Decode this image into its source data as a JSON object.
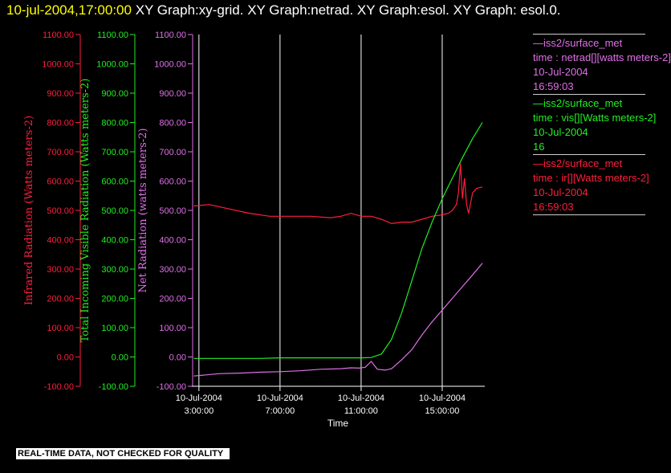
{
  "header": {
    "timestamp": "10-jul-2004,17:00:00",
    "graphs": "  XY Graph:xy-grid.  XY Graph:netrad.  XY Graph:esol.  XY Graph: esol.0."
  },
  "colors": {
    "infrared": "#ff1e3c",
    "visible": "#22ee22",
    "net": "#e070e8",
    "axis": "#ffffff",
    "grid": "#ffffff"
  },
  "legend": {
    "entries": [
      {
        "color": "#e070e8",
        "lines": [
          "—iss2/surface_met",
          "time : netrad[][watts meters-2]",
          "10-Jul-2004",
          "16:59:03"
        ]
      },
      {
        "color": "#22ee22",
        "lines": [
          "—iss2/surface_met",
          "time : vis[][Watts meters-2]",
          "10-Jul-2004",
          "16"
        ]
      },
      {
        "color": "#ff1e3c",
        "lines": [
          "—iss2/surface_met",
          "time : ir[][Watts meters-2]",
          "10-Jul-2004",
          "16:59:03"
        ]
      }
    ]
  },
  "footer": {
    "warning": "REAL-TIME DATA, NOT CHECKED FOR QUALITY"
  },
  "chart_data": {
    "type": "line",
    "xlabel": "Time",
    "x_ticks": [
      {
        "x": 3,
        "date": "10-Jul-2004",
        "time": "3:00:00"
      },
      {
        "x": 7,
        "date": "10-Jul-2004",
        "time": "7:00:00"
      },
      {
        "x": 11,
        "date": "10-Jul-2004",
        "time": "11:00:00"
      },
      {
        "x": 15,
        "date": "10-Jul-2004",
        "time": "15:00:00"
      }
    ],
    "xlim": [
      2.65,
      17.1
    ],
    "grid": true,
    "y_axes": [
      {
        "label": "Infrared Radiation (Watts meters-2)",
        "color": "#ff1e3c",
        "ylim": [
          -100,
          1100
        ],
        "ticks": [
          "-100.00",
          "0.00",
          "100.00",
          "200.00",
          "300.00",
          "400.00",
          "500.00",
          "600.00",
          "700.00",
          "800.00",
          "900.00",
          "1000.00",
          "1100.00"
        ]
      },
      {
        "label": "Total Incoming Visible Radiation (Watts meters-2)",
        "color": "#22ee22",
        "ylim": [
          -100,
          1100
        ],
        "ticks": [
          "-100.00",
          "0.00",
          "100.00",
          "200.00",
          "300.00",
          "400.00",
          "500.00",
          "600.00",
          "700.00",
          "800.00",
          "900.00",
          "1000.00",
          "1100.00"
        ]
      },
      {
        "label": "Net Radiation (watts meters-2)",
        "color": "#e070e8",
        "ylim": [
          -100,
          1100
        ],
        "ticks": [
          "-100.00",
          "0.00",
          "100.00",
          "200.00",
          "300.00",
          "400.00",
          "500.00",
          "600.00",
          "700.00",
          "800.00",
          "900.00",
          "1000.00",
          "1100.00"
        ]
      }
    ],
    "series": [
      {
        "name": "time : ir[][Watts meters-2]",
        "color": "#ff1e3c",
        "x": [
          2.75,
          3.5,
          4.5,
          5.5,
          6.5,
          7.5,
          8.5,
          9.5,
          10.0,
          10.5,
          11.0,
          11.5,
          12.0,
          12.5,
          13.0,
          13.5,
          14.0,
          14.5,
          15.0,
          15.3,
          15.5,
          15.7,
          15.8,
          15.9,
          16.0,
          16.1,
          16.2,
          16.3,
          16.5,
          16.7,
          16.98
        ],
        "y": [
          515,
          520,
          505,
          490,
          480,
          480,
          480,
          475,
          480,
          490,
          480,
          480,
          470,
          455,
          460,
          460,
          470,
          480,
          485,
          490,
          500,
          520,
          560,
          660,
          540,
          610,
          520,
          490,
          560,
          575,
          580
        ]
      },
      {
        "name": "time : vis[][Watts meters-2]",
        "color": "#22ee22",
        "x": [
          2.75,
          4,
          5,
          6,
          7,
          8,
          9,
          10,
          11,
          11.5,
          12,
          12.5,
          13,
          13.5,
          14,
          14.5,
          15,
          15.5,
          16,
          16.5,
          16.98
        ],
        "y": [
          -5,
          -5,
          -5,
          -5,
          -3,
          -3,
          -3,
          -3,
          -3,
          -2,
          10,
          60,
          150,
          260,
          370,
          460,
          540,
          610,
          680,
          745,
          800
        ]
      },
      {
        "name": "time : netrad[][watts meters-2]",
        "color": "#e070e8",
        "x": [
          2.75,
          4,
          5,
          6,
          7,
          8,
          9,
          10,
          10.5,
          10.9,
          11.2,
          11.5,
          11.8,
          12.2,
          12.5,
          13,
          13.5,
          14,
          14.5,
          15,
          15.5,
          16,
          16.5,
          16.98
        ],
        "y": [
          -65,
          -57,
          -55,
          -52,
          -50,
          -47,
          -42,
          -40,
          -37,
          -38,
          -35,
          -15,
          -42,
          -45,
          -40,
          -10,
          25,
          75,
          120,
          160,
          200,
          240,
          280,
          320
        ]
      }
    ]
  }
}
